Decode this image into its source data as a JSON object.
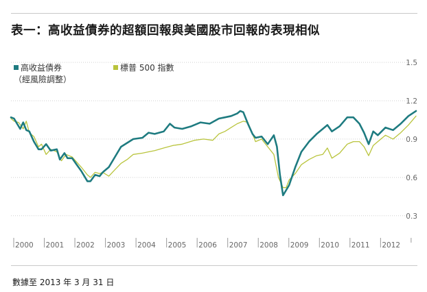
{
  "title": "表一：高收益債券的超額回報與美國股市回報的表現相似",
  "footnote": "數據至 2013 年 3 月 31 日",
  "colors": {
    "high_yield": "#1e7b80",
    "sp500": "#b9c43c",
    "grid": "#cfcfcf",
    "axis_text": "#666666"
  },
  "chart_data": {
    "type": "line",
    "title": "",
    "xlabel": "",
    "ylabel": "",
    "x_ticks": [
      "2000",
      "2001",
      "2002",
      "2003",
      "2004",
      "2005",
      "2006",
      "2007",
      "2008",
      "2009",
      "2010",
      "2011",
      "2012"
    ],
    "y_ticks": [
      "1.5",
      "1.2",
      "0.9",
      "0.6",
      "0.3"
    ],
    "y_tick_values": [
      1.5,
      1.2,
      0.9,
      0.6,
      0.3
    ],
    "ylim": [
      0.17,
      1.5
    ],
    "xlim": [
      2000.0,
      2013.25
    ],
    "legend_position": "top-left",
    "grid": true,
    "series": [
      {
        "name": "高收益債券",
        "name_line2": "（經風險調整）",
        "x": [
          2000.0,
          2000.1,
          2000.2,
          2000.3,
          2000.4,
          2000.5,
          2000.6,
          2000.75,
          2000.9,
          2001.0,
          2001.15,
          2001.3,
          2001.5,
          2001.6,
          2001.75,
          2001.85,
          2002.0,
          2002.15,
          2002.3,
          2002.5,
          2002.6,
          2002.75,
          2002.9,
          2003.0,
          2003.2,
          2003.4,
          2003.6,
          2003.8,
          2004.0,
          2004.3,
          2004.5,
          2004.7,
          2005.0,
          2005.2,
          2005.35,
          2005.6,
          2005.9,
          2006.2,
          2006.5,
          2006.8,
          2007.0,
          2007.2,
          2007.4,
          2007.5,
          2007.6,
          2007.75,
          2007.9,
          2008.0,
          2008.2,
          2008.4,
          2008.6,
          2008.7,
          2008.8,
          2008.9,
          2009.0,
          2009.1,
          2009.3,
          2009.5,
          2009.75,
          2010.0,
          2010.2,
          2010.35,
          2010.5,
          2010.75,
          2011.0,
          2011.2,
          2011.4,
          2011.55,
          2011.7,
          2011.85,
          2012.0,
          2012.25,
          2012.5,
          2012.75,
          2013.0,
          2013.25
        ],
        "values": [
          1.07,
          1.06,
          1.02,
          0.98,
          1.03,
          0.97,
          0.96,
          0.88,
          0.82,
          0.82,
          0.86,
          0.81,
          0.82,
          0.74,
          0.79,
          0.75,
          0.75,
          0.7,
          0.65,
          0.57,
          0.57,
          0.62,
          0.61,
          0.64,
          0.68,
          0.76,
          0.84,
          0.87,
          0.9,
          0.91,
          0.95,
          0.94,
          0.96,
          1.02,
          0.99,
          0.98,
          1.0,
          1.03,
          1.02,
          1.06,
          1.07,
          1.08,
          1.1,
          1.12,
          1.11,
          1.02,
          0.94,
          0.91,
          0.92,
          0.86,
          0.93,
          0.84,
          0.62,
          0.46,
          0.5,
          0.54,
          0.68,
          0.8,
          0.88,
          0.94,
          0.98,
          1.01,
          0.96,
          1.0,
          1.07,
          1.07,
          1.02,
          0.95,
          0.86,
          0.96,
          0.93,
          0.99,
          0.97,
          1.02,
          1.08,
          1.12
        ]
      },
      {
        "name": "標普 500 指數",
        "x": [
          2000.0,
          2000.1,
          2000.25,
          2000.4,
          2000.5,
          2000.6,
          2000.75,
          2000.9,
          2001.0,
          2001.15,
          2001.3,
          2001.5,
          2001.65,
          2001.8,
          2002.0,
          2002.15,
          2002.3,
          2002.5,
          2002.6,
          2002.75,
          2002.9,
          2003.0,
          2003.2,
          2003.4,
          2003.6,
          2003.8,
          2004.0,
          2004.3,
          2004.5,
          2004.7,
          2005.0,
          2005.3,
          2005.6,
          2006.0,
          2006.3,
          2006.6,
          2006.8,
          2007.0,
          2007.2,
          2007.4,
          2007.6,
          2007.75,
          2007.9,
          2008.0,
          2008.2,
          2008.4,
          2008.6,
          2008.75,
          2008.9,
          2009.0,
          2009.1,
          2009.3,
          2009.5,
          2009.75,
          2010.0,
          2010.2,
          2010.35,
          2010.5,
          2010.75,
          2011.0,
          2011.2,
          2011.4,
          2011.55,
          2011.7,
          2011.85,
          2012.0,
          2012.25,
          2012.5,
          2012.75,
          2013.0,
          2013.25
        ],
        "values": [
          1.06,
          1.04,
          1.03,
          0.98,
          1.04,
          0.95,
          0.92,
          0.84,
          0.86,
          0.78,
          0.82,
          0.8,
          0.73,
          0.78,
          0.76,
          0.72,
          0.68,
          0.62,
          0.6,
          0.64,
          0.63,
          0.64,
          0.61,
          0.66,
          0.71,
          0.74,
          0.78,
          0.79,
          0.8,
          0.81,
          0.83,
          0.85,
          0.86,
          0.89,
          0.9,
          0.89,
          0.94,
          0.96,
          0.99,
          1.02,
          1.04,
          1.03,
          0.94,
          0.88,
          0.9,
          0.84,
          0.78,
          0.6,
          0.52,
          0.52,
          0.58,
          0.63,
          0.7,
          0.74,
          0.77,
          0.78,
          0.83,
          0.75,
          0.79,
          0.86,
          0.88,
          0.88,
          0.84,
          0.77,
          0.85,
          0.88,
          0.93,
          0.9,
          0.95,
          1.01,
          1.08
        ]
      }
    ]
  }
}
